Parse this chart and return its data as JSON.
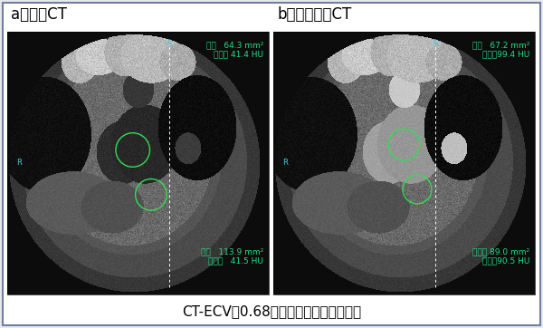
{
  "background_color": "#e8e8ee",
  "border_color": "#7080a0",
  "label_a": "a：単純CT",
  "label_b": "b：遅延造影CT",
  "caption": "CT-ECV＝0.68と著明な高値を示した。",
  "text_a_top_line1": "面積   64.3 mm²",
  "text_a_top_line2": "平均値 41.4 HU",
  "text_a_bot_line1": "面積   113.9 mm²",
  "text_a_bot_line2": "平均値   41.5 HU",
  "text_b_top_line1": "面積   67.2 mm²",
  "text_b_top_line2": "平均値99.4 HU",
  "text_b_bot_line1": "面積ｐ 89.0 mm²",
  "text_b_bot_line2": "平均値90.5 HU",
  "circle_color": "#33dd55",
  "label_font_size": 12,
  "caption_font_size": 11,
  "annotation_font_size": 6.5
}
